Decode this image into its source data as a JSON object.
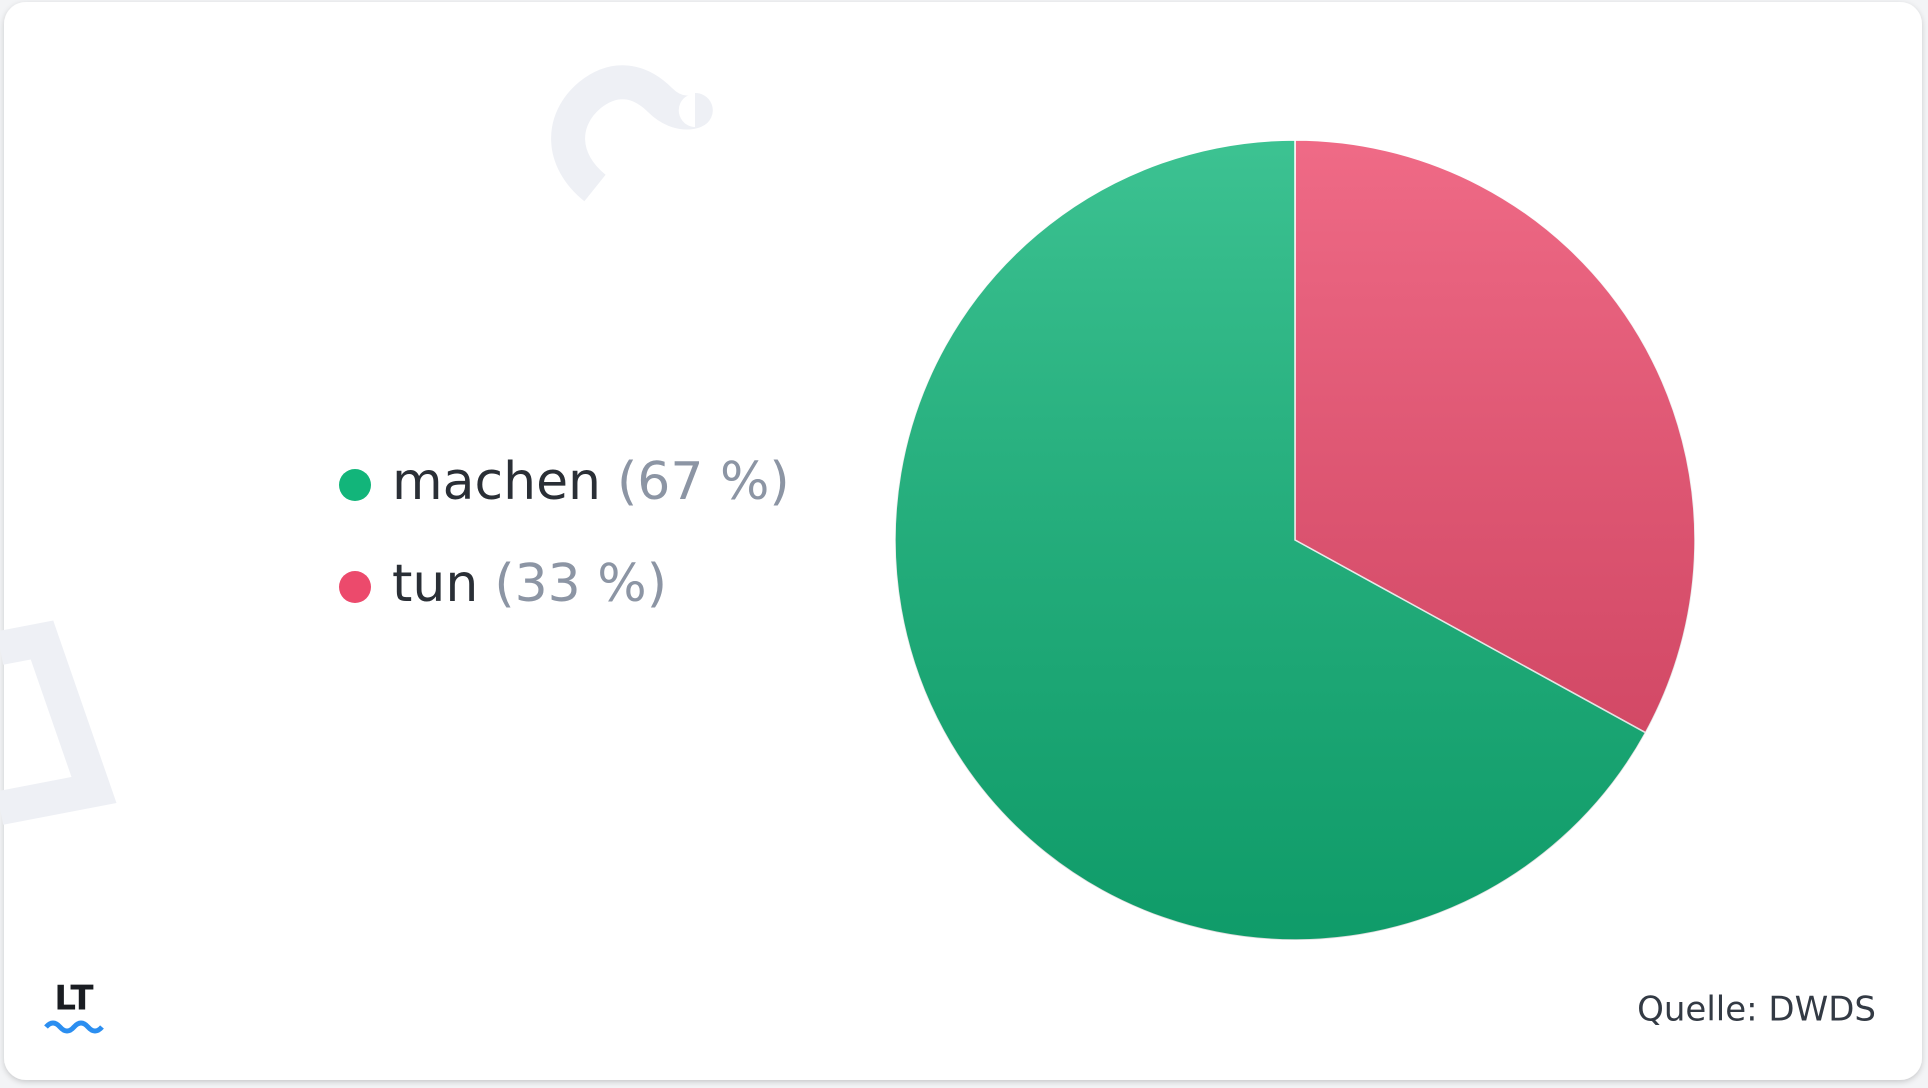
{
  "chart_data": {
    "type": "pie",
    "categories": [
      "machen",
      "tun"
    ],
    "values": [
      67,
      33
    ],
    "value_labels": [
      "(67 %)",
      "(33 %)"
    ],
    "colors": [
      "#12b57a",
      "#ec4a6c"
    ],
    "source": "Quelle: DWDS",
    "logo": "LT"
  }
}
